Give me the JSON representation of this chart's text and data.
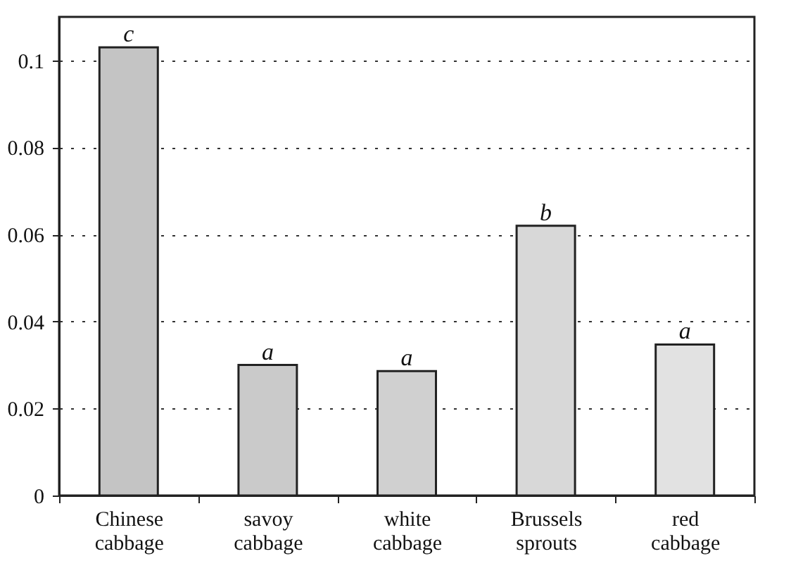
{
  "chart_data": {
    "type": "bar",
    "categories": [
      "Chinese cabbage",
      "savoy cabbage",
      "white cabbage",
      "Brussels sprouts",
      "red cabbage"
    ],
    "values": [
      0.103,
      0.03,
      0.0286,
      0.062,
      0.0347
    ],
    "colors": [
      "#c4c4c4",
      "#cacaca",
      "#d0d0d0",
      "#d8d8d8",
      "#e2e2e2"
    ],
    "ylim": [
      0,
      0.11
    ],
    "yticks": [
      0,
      0.02,
      0.04,
      0.06,
      0.08,
      0.1
    ],
    "grid": "y",
    "annotations": [
      {
        "text": "c",
        "x": "Chinese cabbage",
        "y": 0.103
      },
      {
        "text": "a",
        "x": "savoy cabbage",
        "y": 0.03
      },
      {
        "text": "a",
        "x": "white cabbage",
        "y": 0.0286
      },
      {
        "text": "b",
        "x": "Brussels sprouts",
        "y": 0.062
      },
      {
        "text": "a",
        "x": "red cabbage",
        "y": 0.0347
      }
    ]
  }
}
